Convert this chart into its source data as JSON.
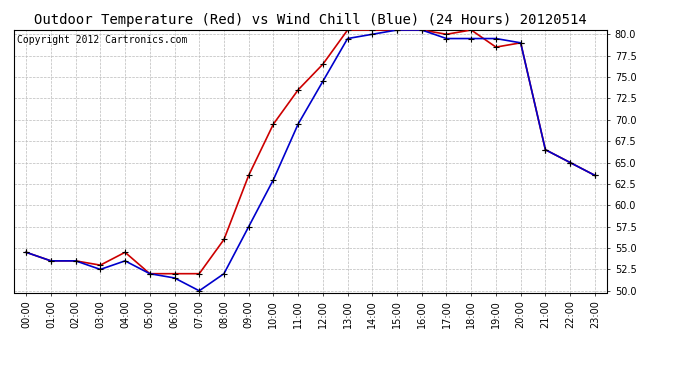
{
  "title": "Outdoor Temperature (Red) vs Wind Chill (Blue) (24 Hours) 20120514",
  "copyright_text": "Copyright 2012 Cartronics.com",
  "hours": [
    "00:00",
    "01:00",
    "02:00",
    "03:00",
    "04:00",
    "05:00",
    "06:00",
    "07:00",
    "08:00",
    "09:00",
    "10:00",
    "11:00",
    "12:00",
    "13:00",
    "14:00",
    "15:00",
    "16:00",
    "17:00",
    "18:00",
    "19:00",
    "20:00",
    "21:00",
    "22:00",
    "23:00"
  ],
  "temp_red": [
    54.5,
    53.5,
    53.5,
    53.0,
    54.5,
    52.0,
    52.0,
    52.0,
    56.0,
    63.5,
    69.5,
    73.5,
    76.5,
    80.5,
    80.5,
    80.5,
    80.5,
    80.0,
    80.5,
    78.5,
    79.0,
    66.5,
    65.0,
    63.5
  ],
  "wind_chill_blue": [
    54.5,
    53.5,
    53.5,
    52.5,
    53.5,
    52.0,
    51.5,
    50.0,
    52.0,
    57.5,
    63.0,
    69.5,
    74.5,
    79.5,
    80.0,
    80.5,
    80.5,
    79.5,
    79.5,
    79.5,
    79.0,
    66.5,
    65.0,
    63.5
  ],
  "ylim_min": 50.0,
  "ylim_max": 80.0,
  "ytick_step": 2.5,
  "bg_color": "#ffffff",
  "plot_bg_color": "#ffffff",
  "grid_color": "#bbbbbb",
  "red_color": "#cc0000",
  "blue_color": "#0000cc",
  "title_fontsize": 10,
  "copyright_fontsize": 7,
  "tick_fontsize": 7
}
